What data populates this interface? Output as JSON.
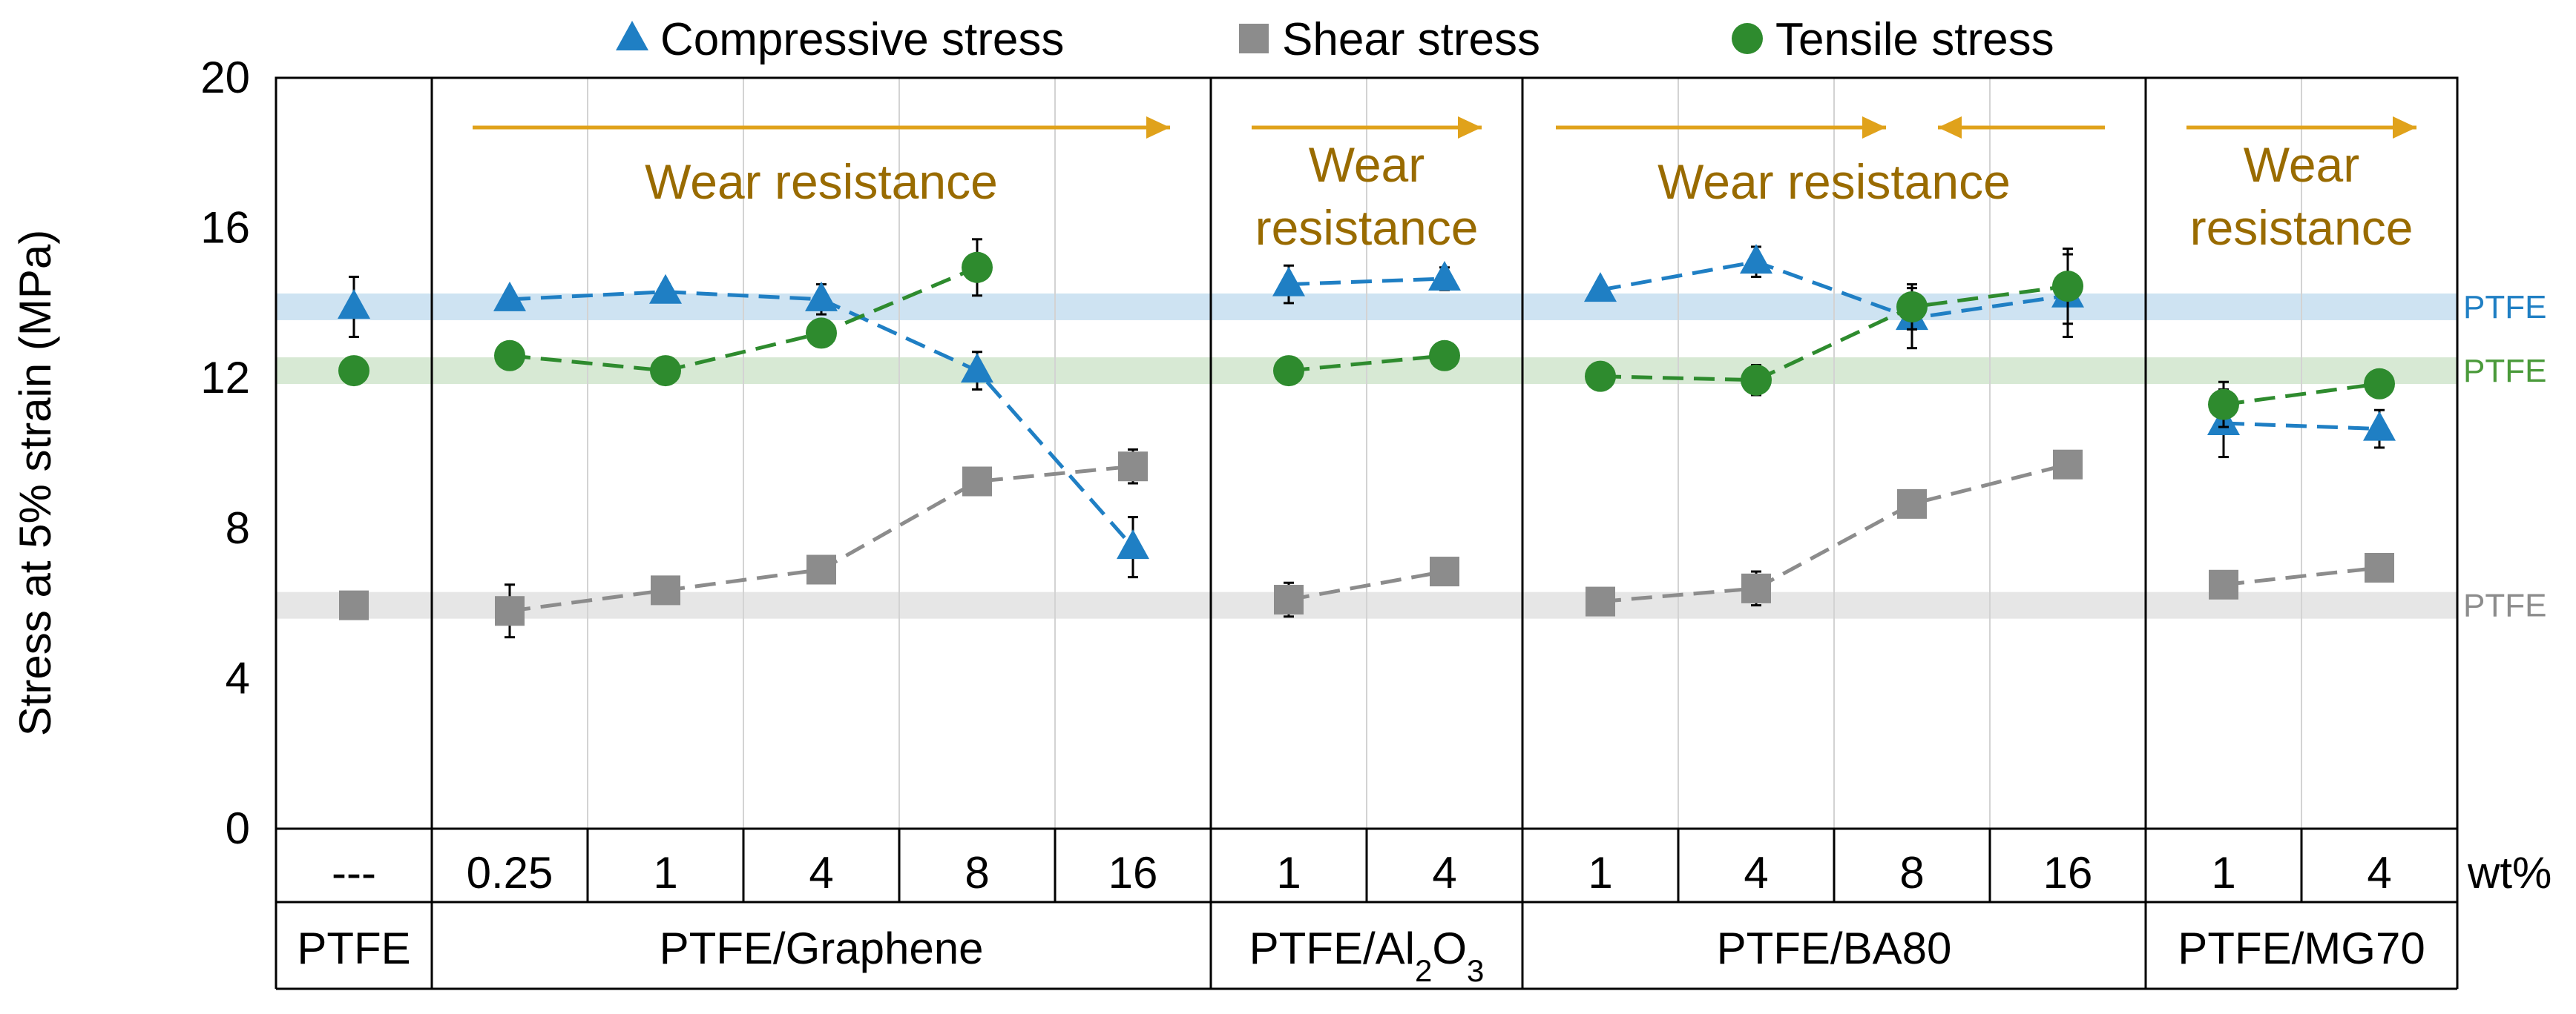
{
  "chart_data": {
    "type": "line",
    "ylabel": "Stress at 5% strain (MPa)",
    "ylim": [
      0,
      20
    ],
    "yticks": [
      0,
      4,
      8,
      12,
      16,
      20
    ],
    "unit_label": "wt%",
    "legend": [
      {
        "name": "Compressive stress",
        "marker": "triangle",
        "color": "#1f7fc4"
      },
      {
        "name": "Shear stress",
        "marker": "square",
        "color": "#8c8c8c"
      },
      {
        "name": "Tensile stress",
        "marker": "circle",
        "color": "#2e8b2e"
      }
    ],
    "reference_lines": [
      {
        "label": "PTFE",
        "series": "Compressive stress",
        "value": 13.9,
        "color": "#1f7fc4"
      },
      {
        "label": "PTFE",
        "series": "Tensile stress",
        "value": 12.2,
        "color": "#4a9a3a"
      },
      {
        "label": "PTFE",
        "series": "Shear stress",
        "value": 5.95,
        "color": "#8c8c8c"
      }
    ],
    "groups": [
      {
        "name": "PTFE",
        "categories": [
          "---"
        ],
        "wear_label": "",
        "series": [
          {
            "name": "Compressive stress",
            "values": [
              13.9
            ],
            "errors": [
              0.8
            ]
          },
          {
            "name": "Shear stress",
            "values": [
              5.95
            ],
            "errors": [
              0
            ]
          },
          {
            "name": "Tensile stress",
            "values": [
              12.2
            ],
            "errors": [
              0
            ]
          }
        ]
      },
      {
        "name": "PTFE/Graphene",
        "categories": [
          "0.25",
          "1",
          "4",
          "8",
          "16"
        ],
        "wear_label": "Wear resistance",
        "series": [
          {
            "name": "Compressive stress",
            "values": [
              14.1,
              14.3,
              14.1,
              12.2,
              7.5
            ],
            "errors": [
              0.2,
              0.2,
              0.4,
              0.5,
              0.8
            ]
          },
          {
            "name": "Shear stress",
            "values": [
              5.8,
              6.35,
              6.9,
              9.25,
              9.65
            ],
            "errors": [
              0.7,
              0.2,
              0.2,
              0.3,
              0.45
            ]
          },
          {
            "name": "Tensile stress",
            "values": [
              12.6,
              12.2,
              13.2,
              14.95,
              null
            ],
            "errors": [
              0.2,
              0.2,
              0.3,
              0.75,
              0
            ]
          }
        ]
      },
      {
        "name": "PTFE/Al₂O₃",
        "categories": [
          "1",
          "4"
        ],
        "wear_label": "Wear resistance",
        "series": [
          {
            "name": "Compressive stress",
            "values": [
              14.5,
              14.65
            ],
            "errors": [
              0.5,
              0.3
            ]
          },
          {
            "name": "Shear stress",
            "values": [
              6.1,
              6.85
            ],
            "errors": [
              0.45,
              0.2
            ]
          },
          {
            "name": "Tensile stress",
            "values": [
              12.2,
              12.6
            ],
            "errors": [
              0.2,
              0.2
            ]
          }
        ]
      },
      {
        "name": "PTFE/BA80",
        "categories": [
          "1",
          "4",
          "8",
          "16"
        ],
        "wear_label": "Wear resistance",
        "series": [
          {
            "name": "Compressive stress",
            "values": [
              14.35,
              15.1,
              13.6,
              14.2
            ],
            "errors": [
              0.2,
              0.4,
              0.8,
              1.1
            ]
          },
          {
            "name": "Shear stress",
            "values": [
              6.05,
              6.4,
              8.65,
              9.7
            ],
            "errors": [
              0.2,
              0.45,
              0.2,
              0.2
            ]
          },
          {
            "name": "Tensile stress",
            "values": [
              12.05,
              11.95,
              13.9,
              14.45
            ],
            "errors": [
              0.2,
              0.4,
              0.6,
              1.0
            ]
          }
        ]
      },
      {
        "name": "PTFE/MG70",
        "categories": [
          "1",
          "4"
        ],
        "wear_label": "Wear resistance",
        "series": [
          {
            "name": "Compressive stress",
            "values": [
              10.8,
              10.65
            ],
            "errors": [
              0.9,
              0.5
            ]
          },
          {
            "name": "Shear stress",
            "values": [
              6.5,
              6.95
            ],
            "errors": [
              0.2,
              0.2
            ]
          },
          {
            "name": "Tensile stress",
            "values": [
              11.3,
              11.85
            ],
            "errors": [
              0.6,
              0.2
            ]
          }
        ]
      }
    ]
  }
}
